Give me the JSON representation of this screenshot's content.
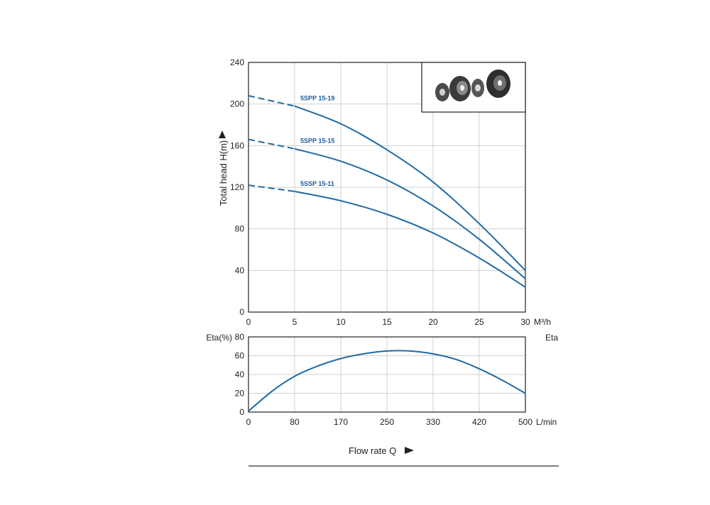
{
  "colors": {
    "curve": "#1f6aa5",
    "label": "#1f5f9c",
    "axis": "#222222",
    "grid": "#d0d0d0"
  },
  "chart_data": [
    {
      "type": "line",
      "ylabel": "Total head H(m)",
      "xlim": [
        0,
        30
      ],
      "ylim": [
        0,
        240
      ],
      "x_ticks": [
        0,
        5,
        10,
        15,
        20,
        25,
        30
      ],
      "x_tick_labels": [
        "0",
        "5",
        "10",
        "15",
        "20",
        "25",
        "30"
      ],
      "x_unit": "M³/h",
      "y_ticks": [
        0,
        40,
        80,
        120,
        160,
        200,
        240
      ],
      "y_tick_labels": [
        "0",
        "40",
        "80",
        "120",
        "160",
        "200",
        "240"
      ],
      "dashed_until_x": 5,
      "series": [
        {
          "name": "5SPP 15-19",
          "x": [
            0,
            5,
            10,
            15,
            20,
            25,
            30
          ],
          "y": [
            208,
            198,
            181,
            156,
            125,
            85,
            40
          ]
        },
        {
          "name": "5SPP 15-15",
          "x": [
            0,
            5,
            10,
            15,
            20,
            25,
            30
          ],
          "y": [
            166,
            157,
            145,
            127,
            102,
            70,
            32
          ]
        },
        {
          "name": "5SSP 15-11",
          "x": [
            0,
            5,
            10,
            15,
            20,
            25,
            30
          ],
          "y": [
            122,
            116,
            107,
            94,
            76,
            52,
            24
          ]
        }
      ]
    },
    {
      "type": "line",
      "ylabel": "Eta(%)",
      "right_label": "Eta",
      "xlim": [
        0,
        500
      ],
      "ylim": [
        0,
        80
      ],
      "x_tick_labels": [
        "0",
        "80",
        "170",
        "250",
        "330",
        "420",
        "500"
      ],
      "x_unit": "L/min",
      "y_ticks": [
        0,
        20,
        40,
        60,
        80
      ],
      "y_tick_labels": [
        "0",
        "20",
        "40",
        "60",
        "80"
      ],
      "series": [
        {
          "name": "Efficiency",
          "x": [
            0,
            42,
            83,
            125,
            167,
            208,
            250,
            292,
            333,
            375,
            417,
            458,
            500
          ],
          "y": [
            1,
            22,
            38,
            49,
            57,
            62,
            65,
            65,
            62,
            56,
            46,
            34,
            20
          ]
        }
      ]
    }
  ],
  "footer": {
    "flow_label": "Flow rate Q"
  },
  "inset": {
    "icon": "impeller-parts-icon"
  }
}
